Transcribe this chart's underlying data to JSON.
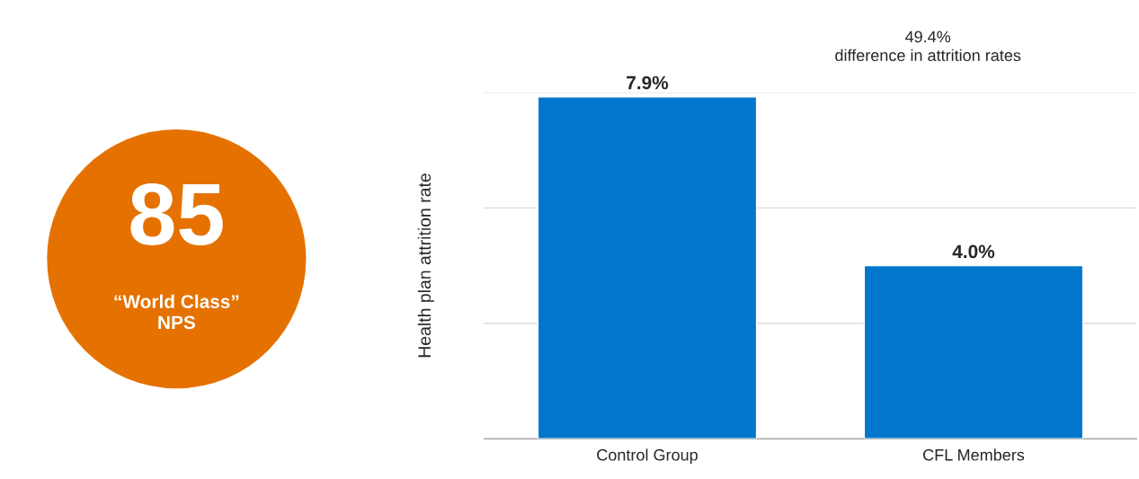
{
  "chart_data": [
    {
      "type": "other",
      "color": "#e57200",
      "annotations": [
        "85",
        "“World Class”\nNPS"
      ]
    },
    {
      "type": "bar",
      "ylabel": "Health plan attrition rate",
      "categories": [
        "Control Group",
        "CFL Members"
      ],
      "values": [
        7.9,
        4.0
      ],
      "value_labels": [
        "7.9%",
        "4.0%"
      ],
      "color": "#0077cc",
      "relative": false,
      "ylim": [
        0,
        8
      ],
      "yticks": [
        {
          "value": 0,
          "label": null
        },
        {
          "value": 2.667,
          "label": null
        },
        {
          "value": 5.333,
          "label": null
        },
        {
          "value": 8,
          "label": null
        }
      ],
      "grid": "y",
      "tick_labels": "x",
      "annotations": [
        "49.4%\ndifference in attrition rates"
      ]
    }
  ]
}
